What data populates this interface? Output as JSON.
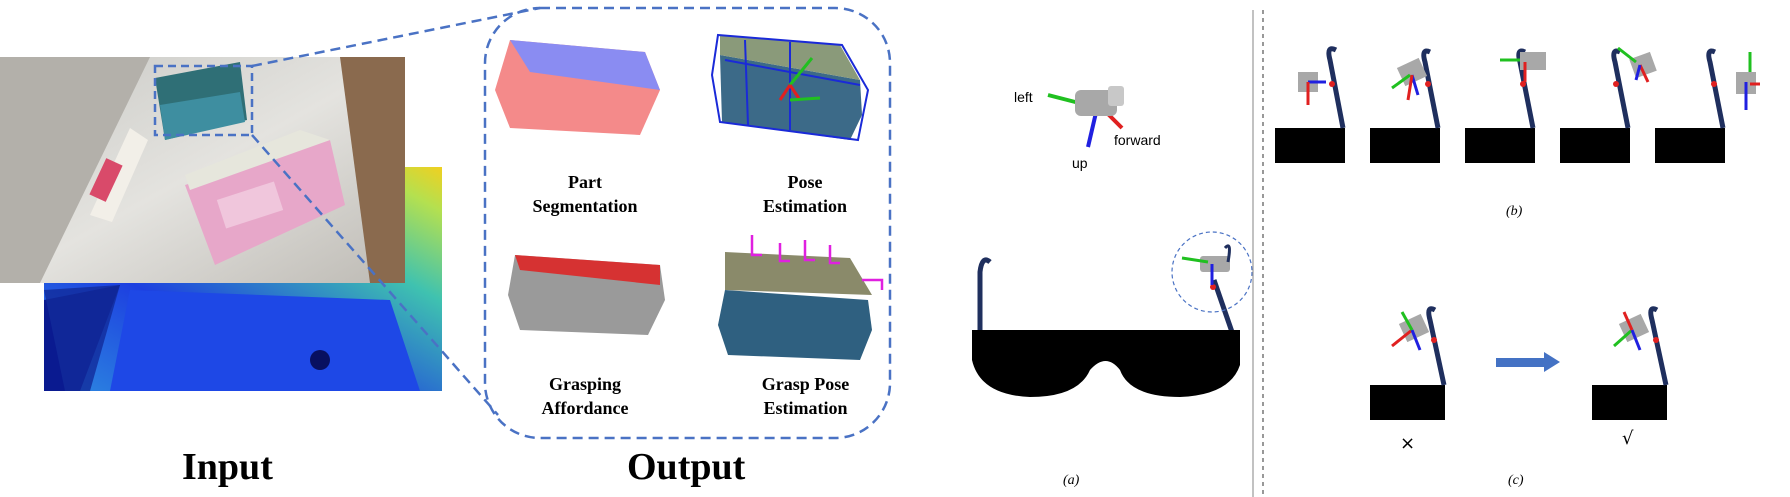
{
  "left_panel": {
    "input_label": "Input",
    "output_label": "Output",
    "outputs": [
      {
        "line1": "Part",
        "line2": "Segmentation"
      },
      {
        "line1": "Pose",
        "line2": "Estimation"
      },
      {
        "line1": "Grasping",
        "line2": "Affordance"
      },
      {
        "line1": "Grasp Pose",
        "line2": "Estimation"
      }
    ]
  },
  "panel_a": {
    "caption": "(a)",
    "axes": {
      "left": "left",
      "forward": "forward",
      "up": "up"
    }
  },
  "panel_b": {
    "caption": "(b)"
  },
  "panel_c": {
    "caption": "(c)",
    "wrong_mark": "×",
    "right_mark": "√"
  },
  "colors": {
    "dash_blue": "#4a72c4",
    "seg_top": "#8a8cf2",
    "seg_bottom": "#f48a8a",
    "box_blue": "#1a2ad8",
    "magenta": "#e020e0",
    "axis_red": "#e02020",
    "axis_green": "#20c020",
    "axis_blue": "#2020e0",
    "frame_navy": "#1f2f5e",
    "arrow_blue": "#4472c4"
  }
}
